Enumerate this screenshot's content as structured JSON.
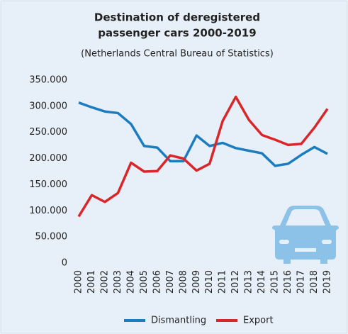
{
  "chart_data": {
    "type": "line",
    "title": [
      "Destination of deregistered",
      "passenger cars 2000-2019"
    ],
    "subtitle": "(Netherlands Central Bureau of Statistics)",
    "categories": [
      "2000",
      "2001",
      "2002",
      "2003",
      "2004",
      "2005",
      "2006",
      "2007",
      "2008",
      "2009",
      "2010",
      "2011",
      "2012",
      "2013",
      "2014",
      "2015",
      "2016",
      "2017",
      "2018",
      "2019"
    ],
    "series": [
      {
        "name": "Dismantling",
        "color": "#1c7cc0",
        "values": [
          307000,
          298000,
          290000,
          287000,
          266000,
          224000,
          221000,
          195000,
          195000,
          244000,
          224000,
          230000,
          220000,
          215000,
          210000,
          186000,
          190000,
          207000,
          222000,
          209000
        ]
      },
      {
        "name": "Export",
        "color": "#d9262a",
        "values": [
          89000,
          130000,
          117000,
          134000,
          192000,
          175000,
          176000,
          206000,
          200000,
          177000,
          190000,
          272000,
          318000,
          274000,
          245000,
          236000,
          226000,
          228000,
          259000,
          295000
        ]
      }
    ],
    "ylim": [
      0,
      350000
    ],
    "yticks": [
      0,
      {
        "value": 50000,
        "label": "50.000"
      },
      {
        "value": 100000,
        "label": "100.000"
      },
      {
        "value": 150000,
        "label": "150.000"
      },
      {
        "value": 200000,
        "label": "200.000"
      },
      {
        "value": 250000,
        "label": "250.000"
      },
      {
        "value": 300000,
        "label": "300.000"
      },
      {
        "value": 350000,
        "label": "350.000"
      }
    ],
    "grid": false,
    "legend": "bottom"
  }
}
